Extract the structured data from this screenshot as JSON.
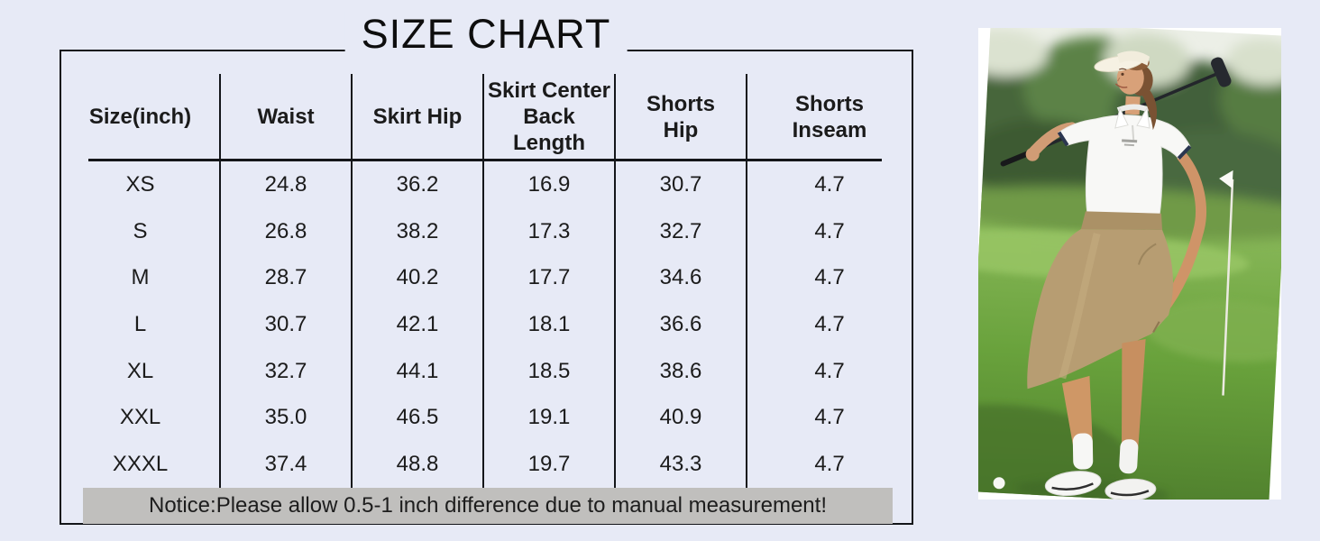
{
  "page": {
    "background": "#e7eaf6"
  },
  "size_chart": {
    "title": "SIZE CHART",
    "table": {
      "columns": [
        "Size(inch)",
        "Waist",
        "Skirt Hip",
        "Skirt Center\nBack\nLength",
        "Shorts\nHip",
        "Shorts\nInseam"
      ],
      "rows": [
        [
          "XS",
          "24.8",
          "36.2",
          "16.9",
          "30.7",
          "4.7"
        ],
        [
          "S",
          "26.8",
          "38.2",
          "17.3",
          "32.7",
          "4.7"
        ],
        [
          "M",
          "28.7",
          "40.2",
          "17.7",
          "34.6",
          "4.7"
        ],
        [
          "L",
          "30.7",
          "42.1",
          "18.1",
          "36.6",
          "4.7"
        ],
        [
          "XL",
          "32.7",
          "44.1",
          "18.5",
          "38.6",
          "4.7"
        ],
        [
          "XXL",
          "35.0",
          "46.5",
          "19.1",
          "40.9",
          "4.7"
        ],
        [
          "XXXL",
          "37.4",
          "48.8",
          "19.7",
          "43.3",
          "4.7"
        ]
      ]
    },
    "notice": "Notice:Please allow 0.5-1 inch difference due to manual measurement!",
    "colors": {
      "line": "#14161a",
      "notice_bg": "#c0bfbd",
      "text": "#1b1b1b"
    }
  },
  "photo": {
    "subject": "woman golfer in white polo, visor and khaki skirt holding golf club on course",
    "colors": {
      "card": "#ffffff",
      "sky": "#ecefe7",
      "trees": "#4d6f3e",
      "grass": "#69a23c",
      "skirt_khaki": "#b79d72",
      "polo_white": "#f8f8f6",
      "visor": "#f6f1e3",
      "skin": "#d19c75",
      "club": "#23262b",
      "trim_navy": "#2b3650"
    }
  }
}
